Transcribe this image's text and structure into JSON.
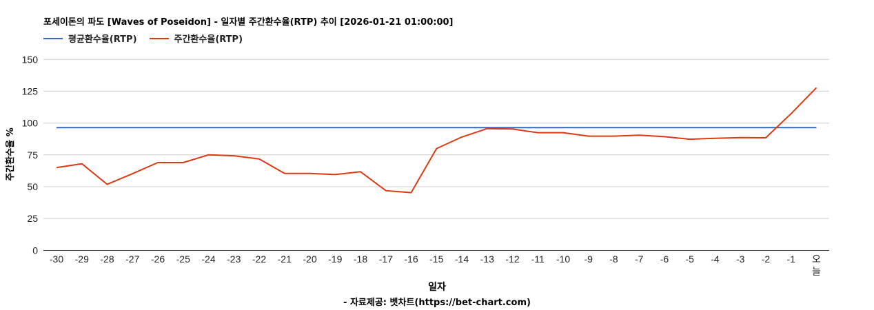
{
  "title": "포세이돈의 파도 [Waves of Poseidon] - 일자별 주간환수율(RTP) 추이 [2026-01-21 01:00:00]",
  "legend": [
    {
      "label": "평균환수율(RTP)",
      "color": "#3366cc"
    },
    {
      "label": "주간환수율(RTP)",
      "color": "#dc3912"
    }
  ],
  "xlabel": "일자",
  "ylabel": "주간환수율 %",
  "credit": "- 자료제공: 벳차트(https://bet-chart.com)",
  "chart_data": {
    "type": "line",
    "title": "포세이돈의 파도 [Waves of Poseidon] - 일자별 주간환수율(RTP) 추이 [2026-01-21 01:00:00]",
    "xlabel": "일자",
    "ylabel": "주간환수율 %",
    "ylim": [
      0,
      150
    ],
    "yticks": [
      0,
      25,
      50,
      75,
      100,
      125,
      150
    ],
    "grid": true,
    "legend_position": "top",
    "categories": [
      "-30",
      "-29",
      "-28",
      "-27",
      "-26",
      "-25",
      "-24",
      "-23",
      "-22",
      "-21",
      "-20",
      "-19",
      "-18",
      "-17",
      "-16",
      "-15",
      "-14",
      "-13",
      "-12",
      "-11",
      "-10",
      "-9",
      "-8",
      "-7",
      "-6",
      "-5",
      "-4",
      "-3",
      "-2",
      "-1",
      "오늘"
    ],
    "series": [
      {
        "name": "평균환수율(RTP)",
        "color": "#3366cc",
        "values": [
          96.4,
          96.4,
          96.4,
          96.4,
          96.4,
          96.4,
          96.4,
          96.4,
          96.4,
          96.4,
          96.4,
          96.4,
          96.4,
          96.4,
          96.4,
          96.4,
          96.4,
          96.4,
          96.4,
          96.4,
          96.4,
          96.4,
          96.4,
          96.4,
          96.4,
          96.4,
          96.4,
          96.4,
          96.4,
          96.4,
          96.4
        ]
      },
      {
        "name": "주간환수율(RTP)",
        "color": "#dc3912",
        "values": [
          65.0,
          68.0,
          51.8,
          60.2,
          68.9,
          68.9,
          75.0,
          74.3,
          71.8,
          60.4,
          60.4,
          59.5,
          61.7,
          46.9,
          45.3,
          79.9,
          89.0,
          95.6,
          95.3,
          92.4,
          92.4,
          89.7,
          89.7,
          90.4,
          89.3,
          87.3,
          88.0,
          88.6,
          88.4,
          107.4,
          127.8
        ]
      }
    ]
  }
}
